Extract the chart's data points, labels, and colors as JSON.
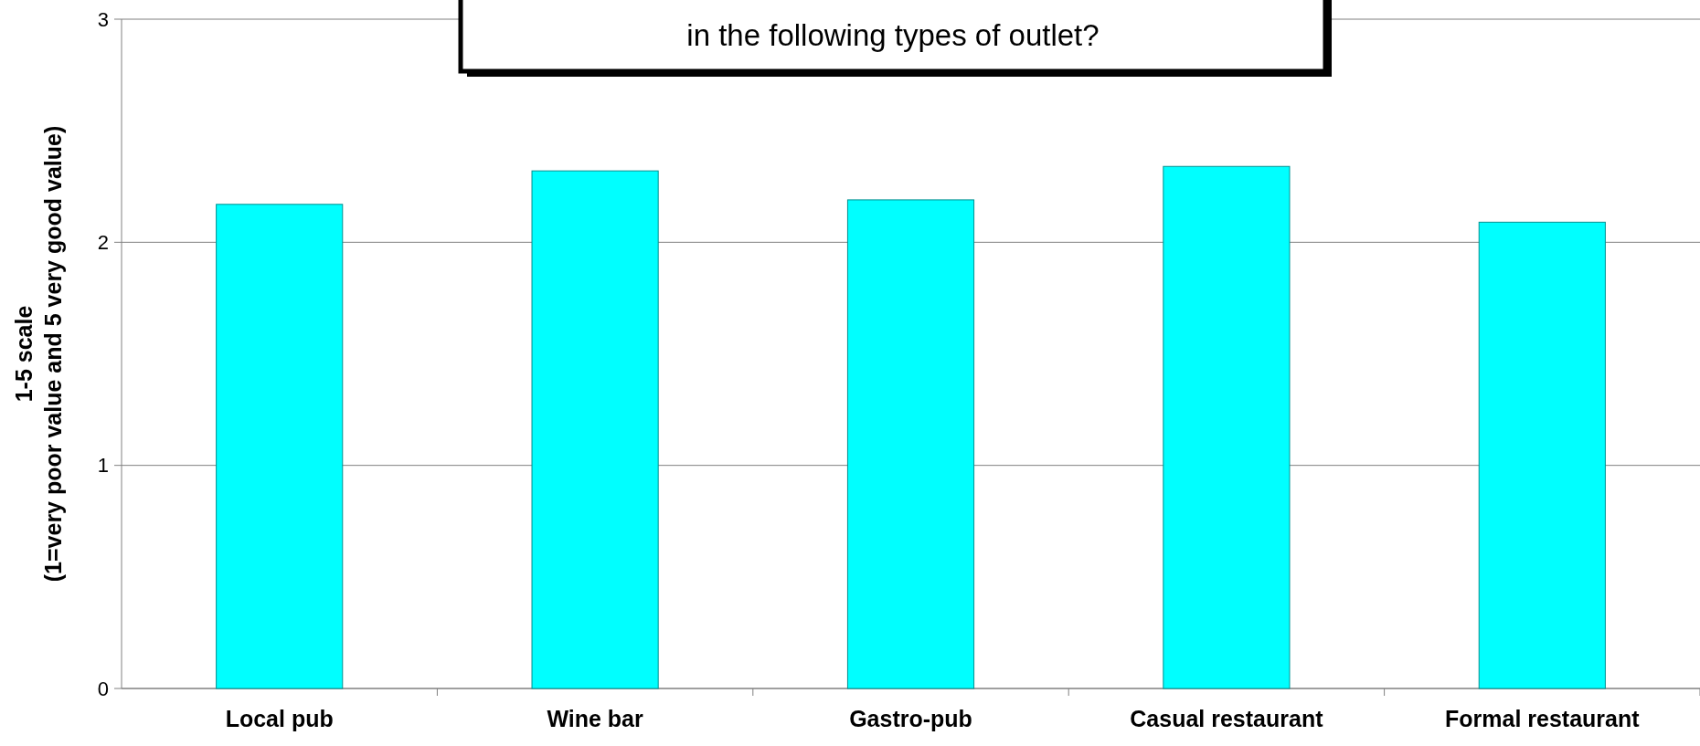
{
  "chart_data": {
    "type": "bar",
    "title": "in the following types of outlet?",
    "ylabel": "1-5 scale\n(1=very poor value and 5 very good value)",
    "categories": [
      "Local pub",
      "Wine bar",
      "Gastro-pub",
      "Casual restaurant",
      "Formal restaurant"
    ],
    "values": [
      2.17,
      2.32,
      2.19,
      2.34,
      2.09
    ],
    "color": "#00ffff",
    "ylim": [
      0,
      3
    ],
    "yticks": [
      0,
      1,
      2,
      3
    ],
    "grid": "y"
  }
}
